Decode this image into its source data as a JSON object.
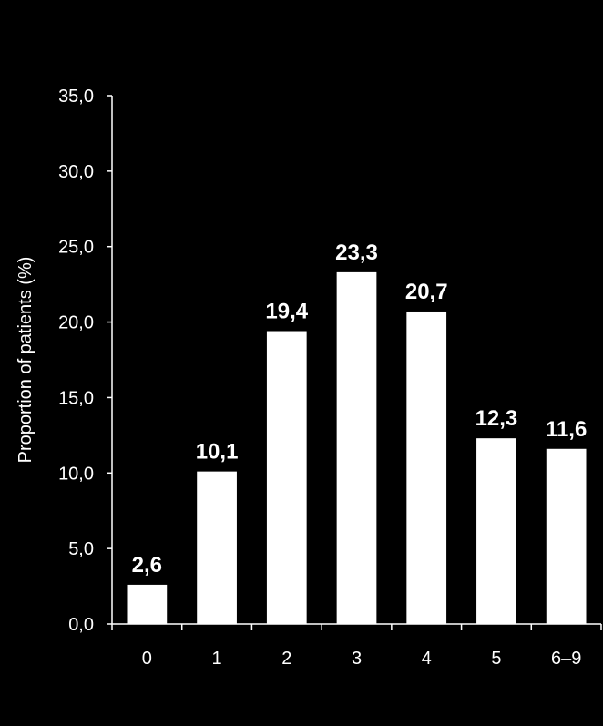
{
  "chart_data": {
    "type": "bar",
    "title": "",
    "xlabel": "",
    "ylabel": "Proportion of patients (%)",
    "categories": [
      "0",
      "1",
      "2",
      "3",
      "4",
      "5",
      "6–9"
    ],
    "values": [
      2.6,
      10.1,
      19.4,
      23.3,
      20.7,
      12.3,
      11.6
    ],
    "value_labels": [
      "2,6",
      "10,1",
      "19,4",
      "23,3",
      "20,7",
      "12,3",
      "11,6"
    ],
    "ylim": [
      0,
      35
    ],
    "yticks": [
      0,
      5,
      10,
      15,
      20,
      25,
      30,
      35
    ],
    "ytick_labels": [
      "0,0",
      "5,0",
      "10,0",
      "15,0",
      "20,0",
      "25,0",
      "30,0",
      "35,0"
    ],
    "grid": false,
    "legend": "none",
    "colors": {
      "background": "#000000",
      "bar": "#ffffff",
      "axis": "#ffffff",
      "text": "#ffffff"
    }
  }
}
